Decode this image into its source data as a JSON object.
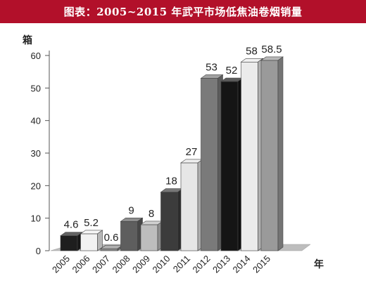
{
  "chart_data": {
    "type": "bar",
    "title": "图表：2005~2015 年武平市场低焦油卷烟销量",
    "ylabel": "箱",
    "xlabel": "年",
    "ylim": [
      0,
      60
    ],
    "yticks": [
      0,
      10,
      20,
      30,
      40,
      50,
      60
    ],
    "categories": [
      "2005",
      "2006",
      "2007",
      "2008",
      "2009",
      "2010",
      "2011",
      "2012",
      "2013",
      "2014",
      "2015"
    ],
    "values": [
      4.6,
      5.2,
      0.6,
      9,
      8,
      18,
      27,
      53,
      52,
      58,
      58.5
    ],
    "value_labels": [
      "4.6",
      "5.2",
      "0.6",
      "9",
      "8",
      "18",
      "27",
      "53",
      "52",
      "58",
      "58.5"
    ],
    "bar_colors": [
      "#1e1e1e",
      "#f2f2f2",
      "#8c8c8c",
      "#5e5e5e",
      "#bdbdbd",
      "#3c3c3c",
      "#e6e6e6",
      "#7a7a7a",
      "#151515",
      "#ebebeb",
      "#9a9a9a"
    ],
    "grid": false,
    "style": "3d-bars"
  }
}
